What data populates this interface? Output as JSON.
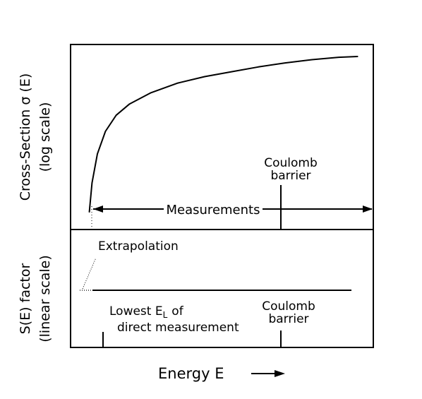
{
  "chart_data": [
    {
      "type": "line",
      "panel": "top",
      "ylabel_line1": "Cross-Section σ (E)",
      "ylabel_line2": "(log scale)",
      "yscale": "log",
      "series": [
        {
          "x": [
            0.07,
            0.08,
            0.1,
            0.13,
            0.17,
            0.22,
            0.3,
            0.4,
            0.5,
            0.6,
            0.7,
            0.8,
            0.9,
            1.0,
            1.07
          ],
          "y": [
            0.0,
            0.18,
            0.36,
            0.5,
            0.6,
            0.67,
            0.74,
            0.8,
            0.84,
            0.87,
            0.9,
            0.925,
            0.945,
            0.96,
            0.965
          ]
        }
      ],
      "annotations": {
        "coulomb_line1": "Coulomb",
        "coulomb_line2": "barrier",
        "measurements": "Measurements"
      }
    },
    {
      "type": "line",
      "panel": "bottom",
      "ylabel_line1": "S(E) factor",
      "ylabel_line2": "(linear scale)",
      "yscale": "linear",
      "series": [
        {
          "x": [
            0.05,
            1.0
          ],
          "y": [
            0.5,
            0.5
          ]
        }
      ],
      "annotations": {
        "extrapolation": "Extrapolation",
        "lowest_line1_pre": "Lowest E",
        "lowest_line1_sub": "L",
        "lowest_line1_post": "of",
        "lowest_line2": "direct measurement",
        "coulomb_line1": "Coulomb",
        "coulomb_line2": "barrier"
      }
    }
  ],
  "xlabel": "Energy E"
}
